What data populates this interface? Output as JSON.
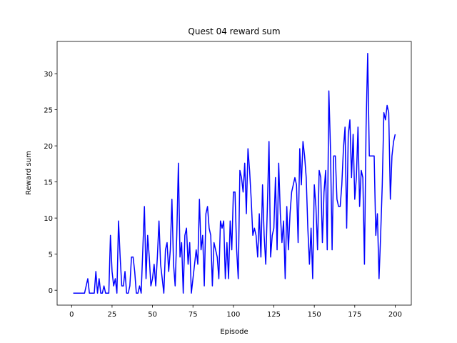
{
  "chart_data": {
    "type": "line",
    "title": "Quest 04 reward sum",
    "xlabel": "Episode",
    "ylabel": "Reward sum",
    "x": [
      1,
      2,
      3,
      4,
      5,
      6,
      7,
      8,
      9,
      10,
      11,
      12,
      13,
      14,
      15,
      16,
      17,
      18,
      19,
      20,
      21,
      22,
      23,
      24,
      25,
      26,
      27,
      28,
      29,
      30,
      31,
      32,
      33,
      34,
      35,
      36,
      37,
      38,
      39,
      40,
      41,
      42,
      43,
      44,
      45,
      46,
      47,
      48,
      49,
      50,
      51,
      52,
      53,
      54,
      55,
      56,
      57,
      58,
      59,
      60,
      61,
      62,
      63,
      64,
      65,
      66,
      67,
      68,
      69,
      70,
      71,
      72,
      73,
      74,
      75,
      76,
      77,
      78,
      79,
      80,
      81,
      82,
      83,
      84,
      85,
      86,
      87,
      88,
      89,
      90,
      91,
      92,
      93,
      94,
      95,
      96,
      97,
      98,
      99,
      100,
      101,
      102,
      103,
      104,
      105,
      106,
      107,
      108,
      109,
      110,
      111,
      112,
      113,
      114,
      115,
      116,
      117,
      118,
      119,
      120,
      121,
      122,
      123,
      124,
      125,
      126,
      127,
      128,
      129,
      130,
      131,
      132,
      133,
      134,
      135,
      136,
      137,
      138,
      139,
      140,
      141,
      142,
      143,
      144,
      145,
      146,
      147,
      148,
      149,
      150,
      151,
      152,
      153,
      154,
      155,
      156,
      157,
      158,
      159,
      160,
      161,
      162,
      163,
      164,
      165,
      166,
      167,
      168,
      169,
      170,
      171,
      172,
      173,
      174,
      175,
      176,
      177,
      178,
      179,
      180,
      181,
      182,
      183,
      184,
      185,
      186,
      187,
      188,
      189,
      190,
      191,
      192,
      193,
      194,
      195,
      196,
      197,
      198,
      199,
      200
    ],
    "series": [
      {
        "name": "Reward sum",
        "color": "#0000ff",
        "values": [
          -0.4,
          -0.4,
          -0.4,
          -0.4,
          -0.4,
          -0.4,
          -0.4,
          -0.4,
          0.6,
          1.6,
          -0.4,
          -0.4,
          -0.4,
          -0.4,
          2.6,
          -0.4,
          1.6,
          -0.4,
          -0.4,
          0.6,
          -0.4,
          -0.4,
          -0.4,
          7.6,
          2.6,
          0.6,
          1.6,
          -0.4,
          9.6,
          4.6,
          0.6,
          0.6,
          2.6,
          -0.4,
          -0.4,
          0.6,
          4.6,
          4.6,
          2.6,
          -0.4,
          -0.4,
          0.6,
          -0.4,
          5.6,
          11.6,
          1.6,
          7.6,
          4.6,
          0.6,
          1.6,
          3.6,
          0.6,
          4.6,
          9.6,
          3.6,
          1.6,
          -0.4,
          5.6,
          6.6,
          2.6,
          5.6,
          12.6,
          3.6,
          0.6,
          7.6,
          17.6,
          4.6,
          6.6,
          -0.4,
          7.6,
          8.6,
          3.6,
          6.6,
          -0.4,
          1.6,
          3.6,
          5.6,
          3.6,
          12.6,
          5.6,
          7.6,
          0.6,
          10.6,
          11.6,
          8.6,
          7.6,
          0.6,
          6.6,
          5.6,
          4.6,
          1.6,
          9.6,
          8.6,
          9.6,
          1.6,
          6.6,
          1.6,
          9.6,
          5.6,
          13.6,
          13.6,
          5.6,
          1.6,
          16.6,
          15.6,
          13.6,
          17.6,
          10.6,
          19.6,
          16.6,
          12.6,
          7.6,
          8.6,
          7.6,
          4.6,
          10.6,
          4.6,
          14.6,
          7.6,
          3.6,
          11.6,
          20.6,
          4.6,
          7.6,
          8.6,
          15.6,
          5.6,
          17.6,
          10.6,
          6.6,
          9.6,
          1.6,
          11.6,
          5.6,
          10.6,
          13.6,
          14.6,
          15.6,
          14.6,
          6.6,
          19.6,
          14.6,
          20.6,
          18.6,
          15.6,
          8.6,
          3.6,
          8.6,
          1.6,
          14.6,
          11.6,
          5.6,
          16.6,
          15.6,
          6.6,
          13.6,
          16.6,
          5.6,
          27.6,
          19.6,
          5.6,
          18.6,
          18.6,
          12.6,
          11.6,
          11.6,
          14.6,
          19.6,
          22.6,
          8.6,
          21.6,
          23.6,
          15.6,
          21.6,
          12.6,
          15.6,
          22.6,
          11.6,
          16.6,
          15.6,
          3.6,
          22.6,
          32.8,
          18.6,
          18.6,
          18.6,
          18.6,
          7.6,
          10.6,
          1.6,
          7.6,
          14.6,
          24.6,
          23.6,
          25.6,
          24.6,
          12.6,
          18.6,
          20.6,
          21.6
        ]
      }
    ],
    "xlim": [
      -8.95,
      209.95
    ],
    "ylim": [
      -2.06,
      34.46
    ],
    "xticks": [
      0,
      25,
      50,
      75,
      100,
      125,
      150,
      175,
      200
    ],
    "yticks": [
      0,
      5,
      10,
      15,
      20,
      25,
      30
    ]
  }
}
